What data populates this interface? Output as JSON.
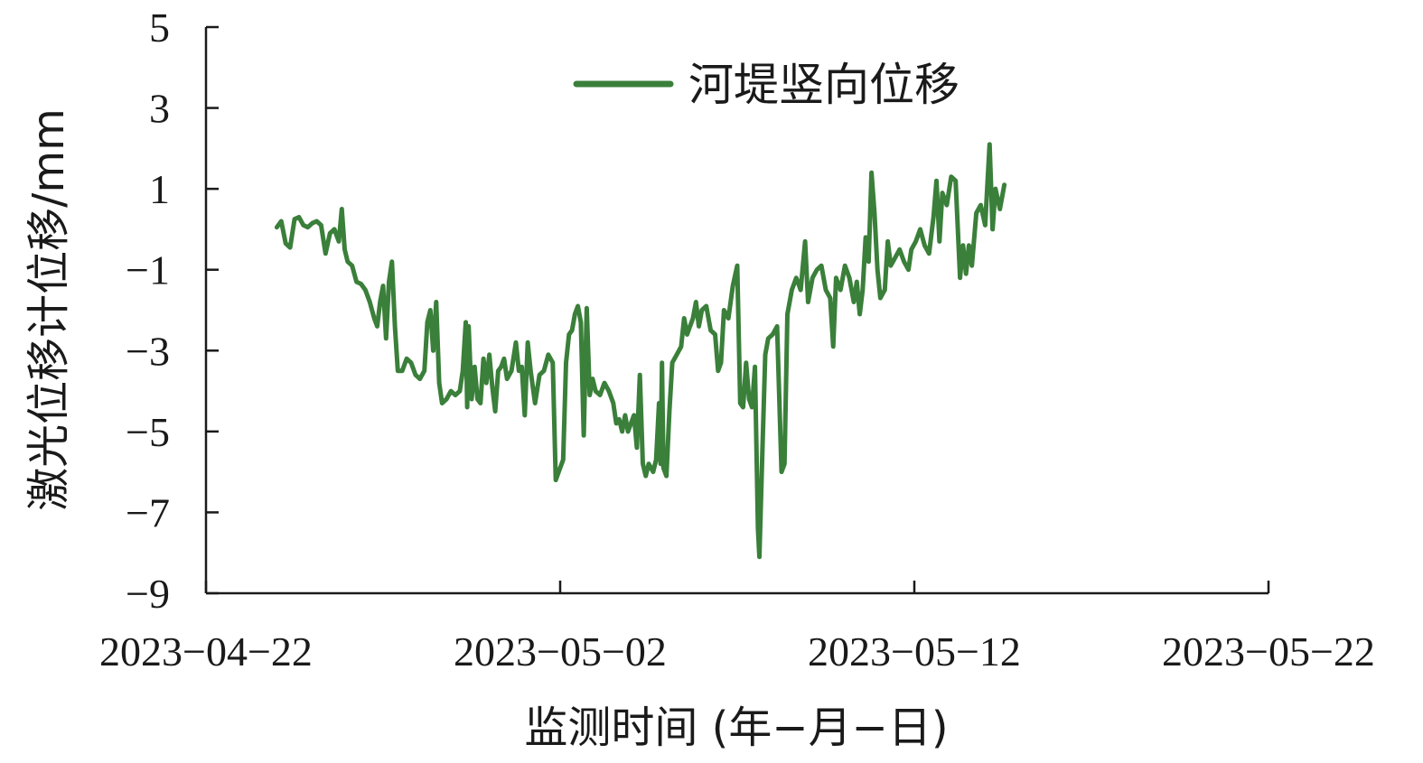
{
  "chart_data": {
    "type": "line",
    "title": "",
    "xlabel": "监测时间 (年−月−日)",
    "ylabel": "激光位移计位移/mm",
    "ylim": [
      -9,
      5
    ],
    "yticks": [
      5,
      3,
      1,
      -1,
      -3,
      -5,
      -7,
      -9
    ],
    "ytick_labels": [
      "5",
      "3",
      "1",
      "−1",
      "−3",
      "−5",
      "−7",
      "−9"
    ],
    "xlim": [
      "2023-04-22",
      "2023-05-22"
    ],
    "xticks": [
      "2023-04-22",
      "2023-05-02",
      "2023-05-12",
      "2023-05-22"
    ],
    "xtick_labels": [
      "2023−04−22",
      "2023−05−02",
      "2023−05−12",
      "2023−05−22"
    ],
    "grid": false,
    "legend_position": "top-center",
    "series": [
      {
        "name": "河堤竖向位移",
        "color": "#3a7f3a",
        "points": [
          [
            "2023-04-24T00:00",
            0.05
          ],
          [
            "2023-04-24T03:00",
            0.2
          ],
          [
            "2023-04-24T06:00",
            -0.35
          ],
          [
            "2023-04-24T09:00",
            -0.45
          ],
          [
            "2023-04-24T12:00",
            0.25
          ],
          [
            "2023-04-24T15:00",
            0.3
          ],
          [
            "2023-04-24T18:00",
            0.1
          ],
          [
            "2023-04-24T21:00",
            0.05
          ],
          [
            "2023-04-25T00:00",
            0.15
          ],
          [
            "2023-04-25T03:00",
            0.2
          ],
          [
            "2023-04-25T06:00",
            0.1
          ],
          [
            "2023-04-25T09:00",
            -0.6
          ],
          [
            "2023-04-25T12:00",
            -0.1
          ],
          [
            "2023-04-25T15:00",
            0.0
          ],
          [
            "2023-04-25T18:00",
            -0.3
          ],
          [
            "2023-04-25T20:00",
            0.5
          ],
          [
            "2023-04-25T22:00",
            -0.5
          ],
          [
            "2023-04-26T00:00",
            -0.8
          ],
          [
            "2023-04-26T03:00",
            -0.9
          ],
          [
            "2023-04-26T06:00",
            -1.3
          ],
          [
            "2023-04-26T09:00",
            -1.35
          ],
          [
            "2023-04-26T12:00",
            -1.5
          ],
          [
            "2023-04-26T15:00",
            -1.8
          ],
          [
            "2023-04-26T18:00",
            -2.2
          ],
          [
            "2023-04-26T20:00",
            -2.4
          ],
          [
            "2023-04-26T22:00",
            -1.8
          ],
          [
            "2023-04-27T00:00",
            -1.4
          ],
          [
            "2023-04-27T02:00",
            -2.7
          ],
          [
            "2023-04-27T04:00",
            -1.3
          ],
          [
            "2023-04-27T06:00",
            -0.8
          ],
          [
            "2023-04-27T08:00",
            -2.4
          ],
          [
            "2023-04-27T10:00",
            -3.5
          ],
          [
            "2023-04-27T13:00",
            -3.5
          ],
          [
            "2023-04-27T16:00",
            -3.2
          ],
          [
            "2023-04-27T19:00",
            -3.3
          ],
          [
            "2023-04-27T22:00",
            -3.6
          ],
          [
            "2023-04-28T01:00",
            -3.7
          ],
          [
            "2023-04-28T04:00",
            -3.5
          ],
          [
            "2023-04-28T06:00",
            -2.3
          ],
          [
            "2023-04-28T08:00",
            -2.0
          ],
          [
            "2023-04-28T10:00",
            -3.0
          ],
          [
            "2023-04-28T12:00",
            -1.8
          ],
          [
            "2023-04-28T14:00",
            -3.8
          ],
          [
            "2023-04-28T16:00",
            -4.3
          ],
          [
            "2023-04-28T19:00",
            -4.2
          ],
          [
            "2023-04-28T22:00",
            -4.0
          ],
          [
            "2023-04-29T01:00",
            -4.1
          ],
          [
            "2023-04-29T04:00",
            -4.0
          ],
          [
            "2023-04-29T06:00",
            -3.5
          ],
          [
            "2023-04-29T08:00",
            -2.3
          ],
          [
            "2023-04-29T09:00",
            -4.4
          ],
          [
            "2023-04-29T10:00",
            -2.4
          ],
          [
            "2023-04-29T12:00",
            -4.2
          ],
          [
            "2023-04-29T14:00",
            -3.4
          ],
          [
            "2023-04-29T16:00",
            -4.2
          ],
          [
            "2023-04-29T18:00",
            -4.3
          ],
          [
            "2023-04-29T20:00",
            -3.2
          ],
          [
            "2023-04-29T22:00",
            -3.8
          ],
          [
            "2023-04-30T00:00",
            -3.1
          ],
          [
            "2023-04-30T02:00",
            -3.9
          ],
          [
            "2023-04-30T04:00",
            -4.5
          ],
          [
            "2023-04-30T06:00",
            -3.5
          ],
          [
            "2023-04-30T08:00",
            -3.4
          ],
          [
            "2023-04-30T10:00",
            -3.2
          ],
          [
            "2023-04-30T12:00",
            -3.7
          ],
          [
            "2023-04-30T15:00",
            -3.5
          ],
          [
            "2023-04-30T18:00",
            -2.8
          ],
          [
            "2023-04-30T20:00",
            -3.5
          ],
          [
            "2023-04-30T22:00",
            -3.4
          ],
          [
            "2023-05-01T00:00",
            -4.6
          ],
          [
            "2023-05-01T02:00",
            -2.8
          ],
          [
            "2023-05-01T04:00",
            -3.5
          ],
          [
            "2023-05-01T07:00",
            -4.3
          ],
          [
            "2023-05-01T10:00",
            -3.6
          ],
          [
            "2023-05-01T13:00",
            -3.5
          ],
          [
            "2023-05-01T16:00",
            -3.1
          ],
          [
            "2023-05-01T19:00",
            -3.3
          ],
          [
            "2023-05-01T21:00",
            -6.2
          ],
          [
            "2023-05-02T00:00",
            -5.9
          ],
          [
            "2023-05-02T02:00",
            -5.7
          ],
          [
            "2023-05-02T04:00",
            -3.3
          ],
          [
            "2023-05-02T06:00",
            -2.6
          ],
          [
            "2023-05-02T08:00",
            -2.5
          ],
          [
            "2023-05-02T10:00",
            -2.1
          ],
          [
            "2023-05-02T12:00",
            -1.9
          ],
          [
            "2023-05-02T14:00",
            -2.3
          ],
          [
            "2023-05-02T16:00",
            -5.1
          ],
          [
            "2023-05-02T18:00",
            -1.95
          ],
          [
            "2023-05-02T20:00",
            -4.1
          ],
          [
            "2023-05-02T22:00",
            -3.7
          ],
          [
            "2023-05-03T00:00",
            -4.0
          ],
          [
            "2023-05-03T03:00",
            -4.1
          ],
          [
            "2023-05-03T06:00",
            -3.8
          ],
          [
            "2023-05-03T09:00",
            -4.0
          ],
          [
            "2023-05-03T12:00",
            -4.3
          ],
          [
            "2023-05-03T14:00",
            -4.8
          ],
          [
            "2023-05-03T16:00",
            -4.7
          ],
          [
            "2023-05-03T18:00",
            -5.0
          ],
          [
            "2023-05-03T20:00",
            -4.6
          ],
          [
            "2023-05-03T22:00",
            -5.0
          ],
          [
            "2023-05-04T00:00",
            -4.8
          ],
          [
            "2023-05-04T02:00",
            -4.6
          ],
          [
            "2023-05-04T04:00",
            -5.4
          ],
          [
            "2023-05-04T06:00",
            -3.6
          ],
          [
            "2023-05-04T08:00",
            -5.8
          ],
          [
            "2023-05-04T10:00",
            -6.1
          ],
          [
            "2023-05-04T12:00",
            -5.8
          ],
          [
            "2023-05-04T15:00",
            -6.0
          ],
          [
            "2023-05-04T17:00",
            -5.7
          ],
          [
            "2023-05-04T19:00",
            -4.3
          ],
          [
            "2023-05-04T20:00",
            -5.8
          ],
          [
            "2023-05-04T21:00",
            -3.3
          ],
          [
            "2023-05-04T22:00",
            -5.9
          ],
          [
            "2023-05-05T00:00",
            -6.1
          ],
          [
            "2023-05-05T02:00",
            -4.5
          ],
          [
            "2023-05-05T04:00",
            -3.3
          ],
          [
            "2023-05-05T07:00",
            -3.1
          ],
          [
            "2023-05-05T10:00",
            -2.9
          ],
          [
            "2023-05-05T12:00",
            -2.2
          ],
          [
            "2023-05-05T14:00",
            -2.6
          ],
          [
            "2023-05-05T16:00",
            -2.4
          ],
          [
            "2023-05-05T18:00",
            -2.2
          ],
          [
            "2023-05-05T20:00",
            -1.8
          ],
          [
            "2023-05-05T22:00",
            -2.4
          ],
          [
            "2023-05-06T00:00",
            -2.0
          ],
          [
            "2023-05-06T03:00",
            -1.9
          ],
          [
            "2023-05-06T06:00",
            -2.5
          ],
          [
            "2023-05-06T09:00",
            -2.6
          ],
          [
            "2023-05-06T11:00",
            -3.5
          ],
          [
            "2023-05-06T13:00",
            -3.3
          ],
          [
            "2023-05-06T15:00",
            -2.0
          ],
          [
            "2023-05-06T18:00",
            -2.2
          ],
          [
            "2023-05-06T21:00",
            -1.4
          ],
          [
            "2023-05-07T00:00",
            -0.9
          ],
          [
            "2023-05-07T02:00",
            -4.3
          ],
          [
            "2023-05-07T04:00",
            -4.4
          ],
          [
            "2023-05-07T06:00",
            -3.3
          ],
          [
            "2023-05-07T08:00",
            -4.2
          ],
          [
            "2023-05-07T10:00",
            -4.4
          ],
          [
            "2023-05-07T12:00",
            -3.4
          ],
          [
            "2023-05-07T14:00",
            -7.4
          ],
          [
            "2023-05-07T15:00",
            -8.1
          ],
          [
            "2023-05-07T17:00",
            -5.5
          ],
          [
            "2023-05-07T19:00",
            -3.1
          ],
          [
            "2023-05-07T21:00",
            -2.7
          ],
          [
            "2023-05-08T00:00",
            -2.6
          ],
          [
            "2023-05-08T03:00",
            -2.4
          ],
          [
            "2023-05-08T06:00",
            -6.0
          ],
          [
            "2023-05-08T08:00",
            -5.8
          ],
          [
            "2023-05-08T10:00",
            -2.1
          ],
          [
            "2023-05-08T13:00",
            -1.5
          ],
          [
            "2023-05-08T16:00",
            -1.2
          ],
          [
            "2023-05-08T19:00",
            -1.5
          ],
          [
            "2023-05-08T22:00",
            -0.3
          ],
          [
            "2023-05-09T00:00",
            -1.8
          ],
          [
            "2023-05-09T03:00",
            -1.2
          ],
          [
            "2023-05-09T06:00",
            -1.0
          ],
          [
            "2023-05-09T09:00",
            -0.9
          ],
          [
            "2023-05-09T12:00",
            -1.5
          ],
          [
            "2023-05-09T15:00",
            -1.7
          ],
          [
            "2023-05-09T17:00",
            -2.9
          ],
          [
            "2023-05-09T19:00",
            -1.2
          ],
          [
            "2023-05-09T22:00",
            -1.5
          ],
          [
            "2023-05-10T01:00",
            -0.9
          ],
          [
            "2023-05-10T04:00",
            -1.2
          ],
          [
            "2023-05-10T07:00",
            -1.8
          ],
          [
            "2023-05-10T09:00",
            -1.3
          ],
          [
            "2023-05-10T11:00",
            -2.1
          ],
          [
            "2023-05-10T13:00",
            -1.5
          ],
          [
            "2023-05-10T15:00",
            -0.2
          ],
          [
            "2023-05-10T17:00",
            -0.8
          ],
          [
            "2023-05-10T19:00",
            1.4
          ],
          [
            "2023-05-10T21:00",
            0.4
          ],
          [
            "2023-05-10T23:00",
            -1.0
          ],
          [
            "2023-05-11T01:00",
            -1.7
          ],
          [
            "2023-05-11T04:00",
            -1.5
          ],
          [
            "2023-05-11T06:00",
            -0.3
          ],
          [
            "2023-05-11T08:00",
            -0.9
          ],
          [
            "2023-05-11T11:00",
            -0.7
          ],
          [
            "2023-05-11T14:00",
            -0.5
          ],
          [
            "2023-05-11T17:00",
            -0.8
          ],
          [
            "2023-05-11T20:00",
            -1.0
          ],
          [
            "2023-05-11T22:00",
            -0.5
          ],
          [
            "2023-05-12T01:00",
            -0.3
          ],
          [
            "2023-05-12T04:00",
            0.0
          ],
          [
            "2023-05-12T07:00",
            -0.4
          ],
          [
            "2023-05-12T10:00",
            -0.6
          ],
          [
            "2023-05-12T13:00",
            0.3
          ],
          [
            "2023-05-12T15:00",
            1.2
          ],
          [
            "2023-05-12T17:00",
            -0.3
          ],
          [
            "2023-05-12T19:00",
            0.9
          ],
          [
            "2023-05-12T22:00",
            0.6
          ],
          [
            "2023-05-13T01:00",
            1.3
          ],
          [
            "2023-05-13T04:00",
            1.2
          ],
          [
            "2023-05-13T07:00",
            -1.2
          ],
          [
            "2023-05-13T09:00",
            -0.4
          ],
          [
            "2023-05-13T11:00",
            -1.1
          ],
          [
            "2023-05-13T13:00",
            -0.4
          ],
          [
            "2023-05-13T15:00",
            -0.9
          ],
          [
            "2023-05-13T18:00",
            0.4
          ],
          [
            "2023-05-13T21:00",
            0.6
          ],
          [
            "2023-05-14T00:00",
            0.1
          ],
          [
            "2023-05-14T03:00",
            2.1
          ],
          [
            "2023-05-14T05:00",
            0.0
          ],
          [
            "2023-05-14T07:00",
            1.0
          ],
          [
            "2023-05-14T10:00",
            0.5
          ],
          [
            "2023-05-14T13:00",
            1.1
          ]
        ]
      }
    ]
  }
}
